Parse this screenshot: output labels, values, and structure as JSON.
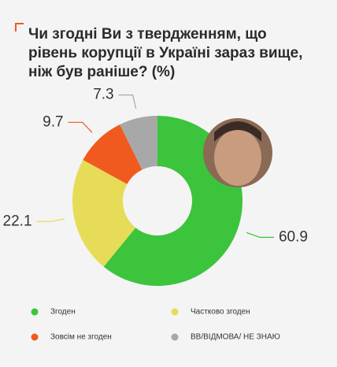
{
  "chart_data": {
    "type": "pie",
    "title": "Чи згодні Ви з твердженням, що рівень корупції в Україні зараз вище, ніж був раніше? (%)",
    "series": [
      {
        "name": "Згоден",
        "color": "#3cc43c",
        "values": [
          60.9
        ]
      },
      {
        "name": "Частково згоден",
        "color": "#e6dc58",
        "values": [
          22.1
        ]
      },
      {
        "name": "Зовсім не згоден",
        "color": "#f05a1e",
        "values": [
          9.7
        ]
      },
      {
        "name": "ВВ/ВІДМОВА/ НЕ ЗНАЮ",
        "color": "#a8a8a8",
        "values": [
          7.3
        ]
      }
    ]
  }
}
